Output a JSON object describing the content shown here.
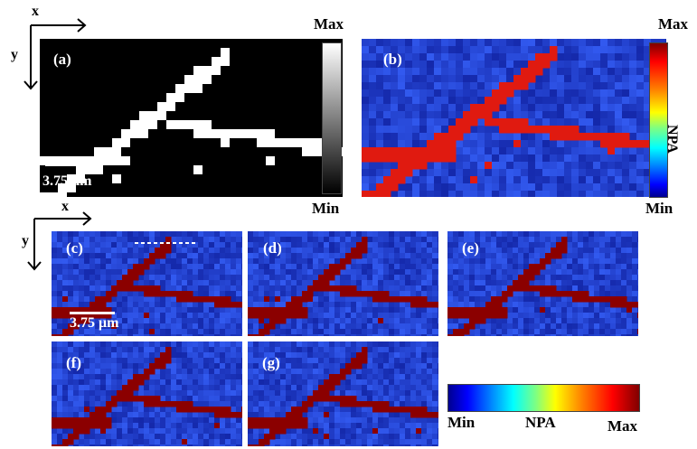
{
  "axes": {
    "x": "x",
    "y": "y"
  },
  "panels": [
    {
      "label": "(a)"
    },
    {
      "label": "(b)"
    },
    {
      "label": "(c)"
    },
    {
      "label": "(d)"
    },
    {
      "label": "(e)"
    },
    {
      "label": "(f)"
    },
    {
      "label": "(g)"
    }
  ],
  "scalebar": "3.75 μm",
  "colorbar_gray": {
    "max": "Max",
    "min": "Min"
  },
  "colorbar_jet_vertical": {
    "max": "Max",
    "min": "Min",
    "label": "NPA"
  },
  "colorbar_jet_horizontal": {
    "min": "Min",
    "label": "NPA",
    "max": "Max"
  },
  "colors": {
    "map_background": "#1e3fd4",
    "branch_dark_red": "#8b0000",
    "branch_red": "#e01a10"
  }
}
